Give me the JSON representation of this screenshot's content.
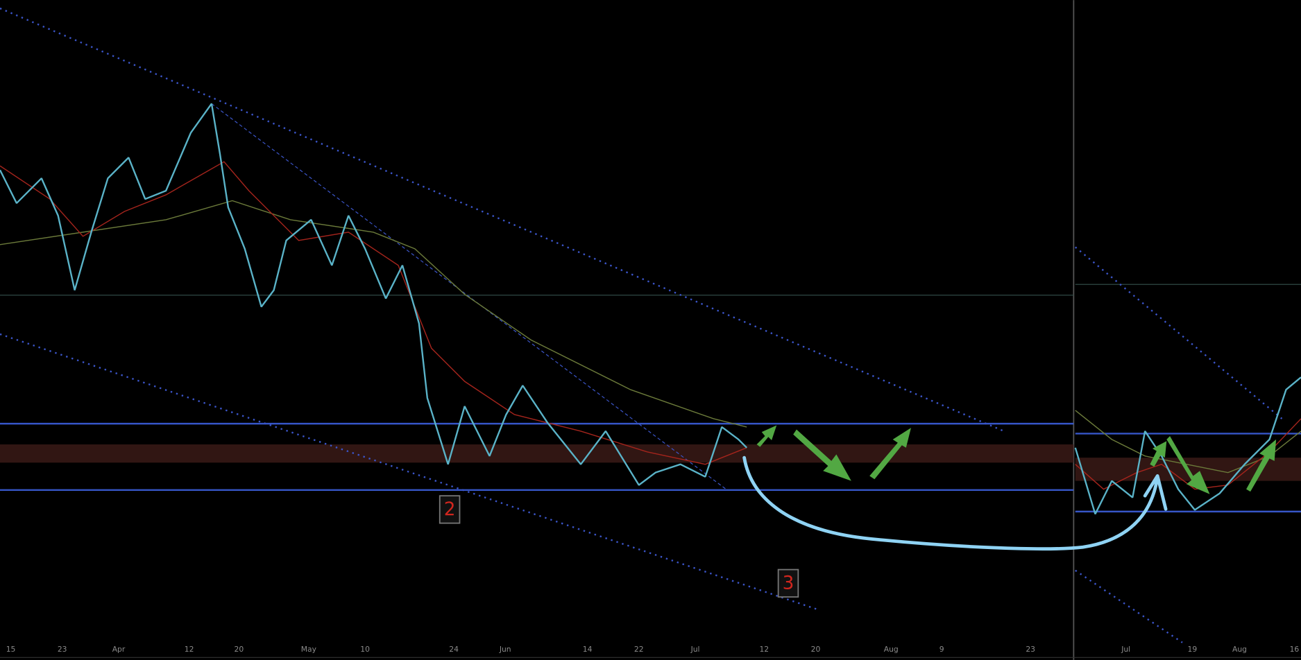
{
  "left_panel": {
    "x_labels": [
      "15",
      "23",
      "Apr",
      "12",
      "20",
      "May",
      "10",
      "24",
      "Jun",
      "14",
      "22",
      "Jul",
      "12",
      "20",
      "Aug",
      "9",
      "23"
    ]
  },
  "right_panel": {
    "x_labels": [
      "Jul",
      "19",
      "Aug",
      "16"
    ]
  },
  "annotations": [
    "2",
    "3"
  ]
}
